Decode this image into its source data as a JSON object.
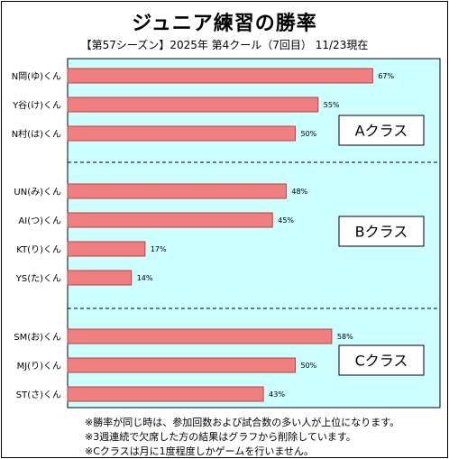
{
  "title": "ジュニア練習の勝率",
  "subtitle": "【第57シーズン】2025年 第4クール（7回目） 11/23現在",
  "chart_data": {
    "type": "bar",
    "orientation": "horizontal",
    "categories": [
      "N岡(ゆ)くん",
      "Y谷(け)くん",
      "N村(は)くん",
      "UN(み)くん",
      "AI(つ)くん",
      "KT(り)くん",
      "YS(た)くん",
      "SM(お)くん",
      "MJ(り)くん",
      "ST(さ)くん"
    ],
    "values": [
      67,
      55,
      50,
      48,
      45,
      17,
      14,
      58,
      50,
      43
    ],
    "value_labels": [
      "67%",
      "55%",
      "50%",
      "48%",
      "45%",
      "17%",
      "14%",
      "58%",
      "50%",
      "43%"
    ],
    "groups": [
      {
        "label": "Aクラス",
        "members": [
          0,
          1,
          2
        ]
      },
      {
        "label": "Bクラス",
        "members": [
          3,
          4,
          5,
          6
        ]
      },
      {
        "label": "Cクラス",
        "members": [
          7,
          8,
          9
        ]
      }
    ],
    "xlim": [
      0,
      100
    ],
    "grid": false,
    "colors": {
      "plot_bg": "#ccffff",
      "bar": "#f08080",
      "bar_border": "#c04040"
    }
  },
  "notes": [
    "※勝率が同じ時は、参加回数および試合数の多い人が上位になります。",
    "※3週連続で欠席した方の結果はグラフから削除しています。",
    "※Cクラスは月に1度程度しかゲームを行いません。"
  ]
}
